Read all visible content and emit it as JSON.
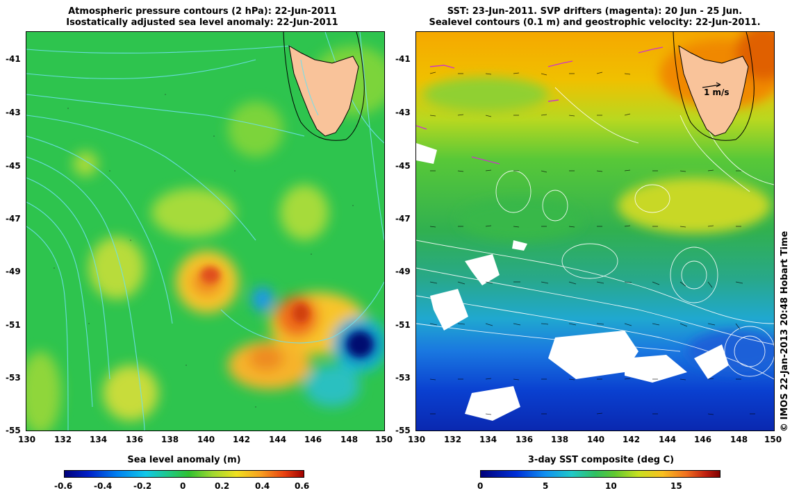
{
  "left_panel": {
    "title_line1": "Atmospheric pressure contours (2 hPa): 22-Jun-2011",
    "title_line2": "Isostatically adjusted sea level anomaly: 22-Jun-2011",
    "lat_ticks": [
      "-41",
      "-43",
      "-45",
      "-47",
      "-49",
      "-51",
      "-53",
      "-55"
    ],
    "lon_ticks": [
      "130",
      "132",
      "134",
      "136",
      "138",
      "140",
      "142",
      "144",
      "146",
      "148",
      "150"
    ],
    "colorbar_title": "Sea level anomaly (m)",
    "colorbar_ticks": [
      "-0.6",
      "-0.4",
      "-0.2",
      "0",
      "0.2",
      "0.4",
      "0.6"
    ]
  },
  "right_panel": {
    "title_line1": "SST: 23-Jun-2011. SVP drifters (magenta): 20 Jun - 25 Jun.",
    "title_line2": "Sealevel contours (0.1 m) and geostrophic velocity: 22-Jun-2011.",
    "lat_ticks": [
      "-41",
      "-43",
      "-45",
      "-47",
      "-49",
      "-51",
      "-53",
      "-55"
    ],
    "lon_ticks": [
      "130",
      "132",
      "134",
      "136",
      "138",
      "140",
      "142",
      "144",
      "146",
      "148",
      "150"
    ],
    "scale_label": "1 m/s",
    "colorbar_title": "3-day SST composite (deg C)",
    "colorbar_ticks": [
      "0",
      "5",
      "10",
      "15"
    ]
  },
  "credit": "© IMOS 22-Jan-2013 20:48 Hobart Time",
  "colors": {
    "land": "#f9c39a",
    "sla_base": "#22c24a",
    "sst_north": "#f5b400",
    "sst_mid": "#3fbf3f",
    "sst_south": "#0a2fd0",
    "contour_cyan": "#6fe0ee",
    "drifter": "#cc33cc"
  }
}
